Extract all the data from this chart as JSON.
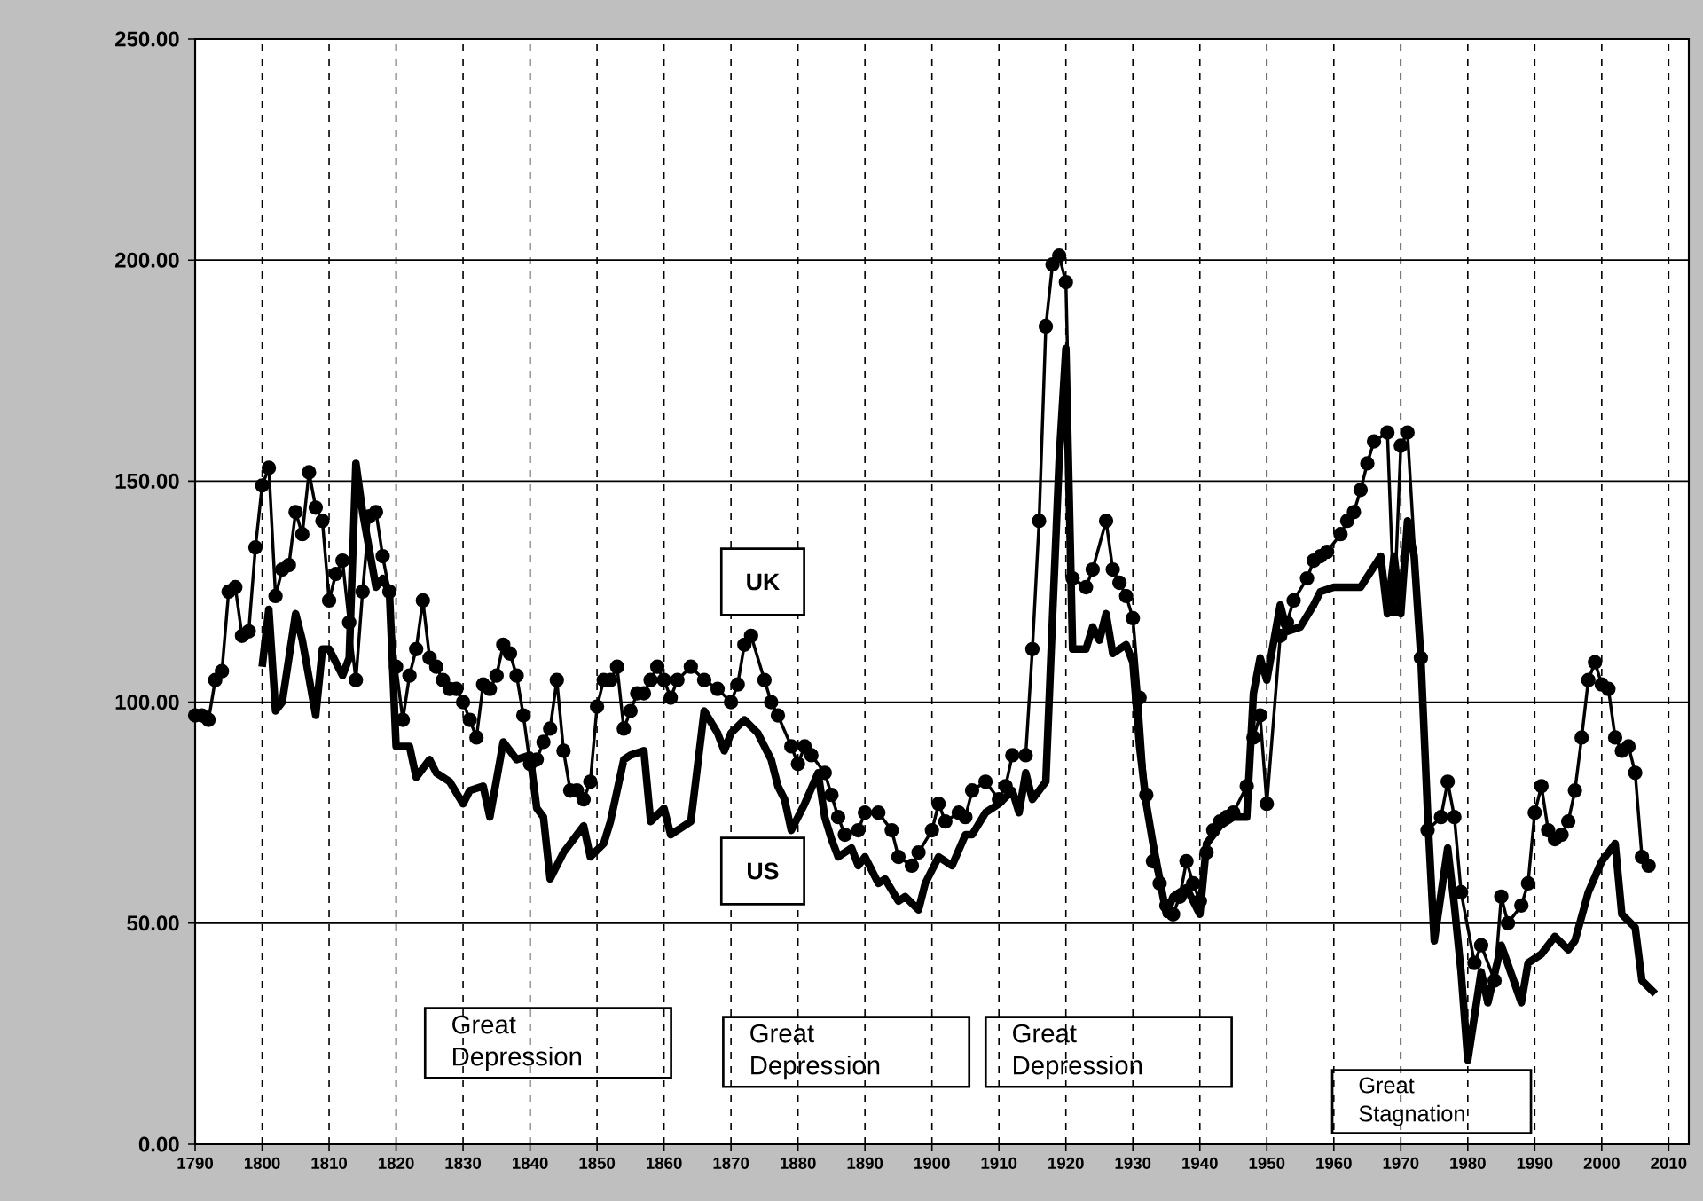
{
  "chart_data": {
    "type": "line",
    "xlim": [
      1790,
      2013
    ],
    "xticks": [
      1790,
      1800,
      1810,
      1820,
      1830,
      1840,
      1850,
      1860,
      1870,
      1880,
      1890,
      1900,
      1910,
      1920,
      1930,
      1940,
      1950,
      1960,
      1970,
      1980,
      1990,
      2000,
      2010
    ],
    "ylim": [
      0,
      250
    ],
    "yticks": [
      {
        "value": 0,
        "label": "0.00"
      },
      {
        "value": 50,
        "label": "50.00"
      },
      {
        "value": 100,
        "label": "100.00"
      },
      {
        "value": 150,
        "label": "150.00"
      },
      {
        "value": 200,
        "label": "200.00"
      },
      {
        "value": 250,
        "label": "250.00"
      }
    ],
    "grid": true,
    "annotations": [
      "Great Depression",
      "Great Depression",
      "Great Depression",
      "Great Stagnation"
    ],
    "series": [
      {
        "name": "UK",
        "color": "#000000",
        "marker": "circle",
        "x": [
          1790,
          1791,
          1792,
          1793,
          1794,
          1795,
          1796,
          1797,
          1798,
          1799,
          1800,
          1801,
          1802,
          1803,
          1804,
          1805,
          1806,
          1807,
          1808,
          1809,
          1810,
          1811,
          1812,
          1813,
          1814,
          1815,
          1816,
          1817,
          1818,
          1819,
          1820,
          1821,
          1822,
          1823,
          1824,
          1825,
          1826,
          1827,
          1828,
          1829,
          1830,
          1831,
          1832,
          1833,
          1834,
          1835,
          1836,
          1837,
          1838,
          1839,
          1840,
          1841,
          1842,
          1843,
          1844,
          1845,
          1846,
          1847,
          1848,
          1849,
          1850,
          1851,
          1852,
          1853,
          1854,
          1855,
          1856,
          1857,
          1858,
          1859,
          1860,
          1861,
          1862,
          1864,
          1866,
          1868,
          1870,
          1871,
          1872,
          1873,
          1875,
          1876,
          1877,
          1879,
          1880,
          1881,
          1882,
          1884,
          1885,
          1886,
          1887,
          1889,
          1890,
          1892,
          1894,
          1895,
          1897,
          1898,
          1900,
          1901,
          1902,
          1904,
          1905,
          1906,
          1908,
          1910,
          1911,
          1912,
          1914,
          1915,
          1916,
          1917,
          1918,
          1919,
          1920,
          1921,
          1923,
          1924,
          1926,
          1927,
          1928,
          1929,
          1930,
          1931,
          1932,
          1933,
          1934,
          1935,
          1936,
          1937,
          1938,
          1939,
          1940,
          1941,
          1942,
          1943,
          1944,
          1945,
          1947,
          1948,
          1949,
          1950,
          1952,
          1953,
          1954,
          1956,
          1957,
          1958,
          1959,
          1961,
          1962,
          1963,
          1964,
          1965,
          1966,
          1968,
          1969,
          1970,
          1971,
          1973,
          1974,
          1976,
          1977,
          1978,
          1979,
          1981,
          1982,
          1984,
          1985,
          1986,
          1988,
          1989,
          1990,
          1991,
          1992,
          1993,
          1994,
          1995,
          1996,
          1997,
          1998,
          1999,
          2000,
          2001,
          2002,
          2003,
          2004,
          2005,
          2006,
          2007
        ],
        "values": [
          97,
          97,
          96,
          105,
          107,
          125,
          126,
          115,
          116,
          135,
          149,
          153,
          124,
          130,
          131,
          143,
          138,
          152,
          144,
          141,
          123,
          129,
          132,
          118,
          105,
          125,
          142,
          143,
          133,
          125,
          108,
          96,
          106,
          112,
          123,
          110,
          108,
          105,
          103,
          103,
          100,
          96,
          92,
          104,
          103,
          106,
          113,
          111,
          106,
          97,
          86,
          87,
          91,
          94,
          105,
          89,
          80,
          80,
          78,
          82,
          99,
          105,
          105,
          108,
          94,
          98,
          102,
          102,
          105,
          108,
          105,
          101,
          105,
          108,
          105,
          103,
          100,
          104,
          113,
          115,
          105,
          100,
          97,
          90,
          86,
          90,
          88,
          84,
          79,
          74,
          70,
          71,
          75,
          75,
          71,
          65,
          63,
          66,
          71,
          77,
          73,
          75,
          74,
          80,
          82,
          78,
          81,
          88,
          88,
          112,
          141,
          185,
          199,
          201,
          195,
          128,
          126,
          130,
          141,
          130,
          127,
          124,
          119,
          101,
          79,
          64,
          59,
          54,
          52,
          56,
          64,
          59,
          55,
          66,
          71,
          73,
          74,
          75,
          81,
          92,
          97,
          77,
          115,
          118,
          123,
          128,
          132,
          133,
          134,
          138,
          141,
          143,
          148,
          154,
          159,
          161,
          121,
          158,
          161,
          110,
          71,
          74,
          82,
          74,
          57,
          41,
          45,
          37,
          56,
          50,
          54,
          59,
          75,
          81,
          71,
          69,
          70,
          73,
          80,
          92,
          105,
          109,
          104,
          103,
          92,
          89,
          90,
          84,
          65,
          63
        ]
      },
      {
        "name": "US",
        "color": "#000000",
        "marker": "none",
        "x": [
          1800,
          1801,
          1802,
          1803,
          1805,
          1806,
          1808,
          1809,
          1810,
          1812,
          1813,
          1814,
          1815,
          1817,
          1818,
          1819,
          1820,
          1822,
          1823,
          1825,
          1826,
          1828,
          1830,
          1831,
          1833,
          1834,
          1836,
          1838,
          1840,
          1841,
          1842,
          1843,
          1845,
          1848,
          1849,
          1851,
          1852,
          1854,
          1855,
          1857,
          1858,
          1860,
          1861,
          1863,
          1864,
          1866,
          1868,
          1869,
          1870,
          1872,
          1874,
          1876,
          1877,
          1878,
          1879,
          1881,
          1883,
          1884,
          1885,
          1886,
          1888,
          1889,
          1890,
          1892,
          1893,
          1895,
          1896,
          1898,
          1899,
          1901,
          1903,
          1905,
          1906,
          1908,
          1910,
          1912,
          1913,
          1914,
          1915,
          1917,
          1918,
          1919,
          1920,
          1921,
          1923,
          1924,
          1925,
          1926,
          1927,
          1929,
          1930,
          1931,
          1932,
          1933,
          1935,
          1936,
          1938,
          1940,
          1941,
          1943,
          1945,
          1947,
          1948,
          1949,
          1950,
          1952,
          1953,
          1955,
          1957,
          1958,
          1960,
          1964,
          1967,
          1968,
          1969,
          1970,
          1971,
          1972,
          1973,
          1974,
          1975,
          1977,
          1978,
          1979,
          1980,
          1982,
          1983,
          1985,
          1988,
          1989,
          1991,
          1993,
          1995,
          1996,
          1998,
          2000,
          2002,
          2003,
          2005,
          2006,
          2008
        ],
        "values": [
          108,
          121,
          98,
          100,
          120,
          114,
          97,
          112,
          112,
          106,
          110,
          154,
          143,
          126,
          128,
          125,
          90,
          90,
          83,
          87,
          84,
          82,
          77,
          80,
          81,
          74,
          91,
          87,
          88,
          76,
          74,
          60,
          66,
          72,
          65,
          68,
          73,
          87,
          88,
          89,
          73,
          76,
          70,
          72,
          73,
          98,
          93,
          89,
          93,
          96,
          93,
          87,
          81,
          78,
          71,
          77,
          84,
          74,
          69,
          65,
          67,
          63,
          65,
          59,
          60,
          55,
          56,
          53,
          59,
          65,
          63,
          70,
          70,
          75,
          77,
          80,
          75,
          84,
          78,
          82,
          119,
          155,
          180,
          112,
          112,
          117,
          114,
          120,
          111,
          113,
          109,
          90,
          77,
          68,
          52,
          56,
          58,
          52,
          68,
          72,
          74,
          74,
          102,
          110,
          105,
          122,
          116,
          117,
          122,
          125,
          126,
          126,
          133,
          120,
          133,
          120,
          141,
          133,
          110,
          75,
          46,
          67,
          54,
          39,
          19,
          39,
          32,
          45,
          32,
          41,
          43,
          47,
          44,
          46,
          57,
          64,
          68,
          52,
          49,
          37,
          34
        ]
      }
    ]
  }
}
